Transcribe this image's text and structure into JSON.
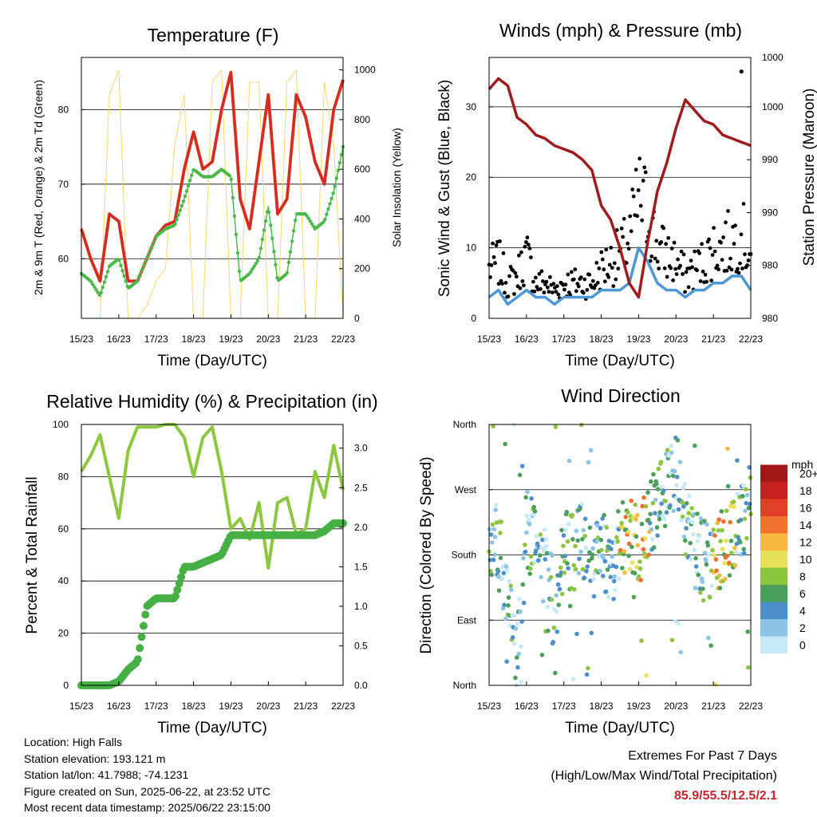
{
  "x_ticks": [
    "15/23",
    "16/23",
    "17/23",
    "18/23",
    "19/23",
    "20/23",
    "21/23",
    "22/23"
  ],
  "charts": {
    "temperature": {
      "title": "Temperature (F)",
      "xlabel": "Time (Day/UTC)",
      "ylabel": "2m & 9m T (Red, Orange) & 2m Td (Green)",
      "y2label": "Solar Insolation (Yellow)",
      "yticks": [
        "60",
        "70",
        "80"
      ],
      "y2ticks": [
        "0",
        "200",
        "400",
        "600",
        "800",
        "1000"
      ]
    },
    "wind": {
      "title": "Winds (mph) & Pressure (mb)",
      "xlabel": "Time (Day/UTC)",
      "ylabel": "Sonic Wind & Gust (Blue, Black)",
      "y2label": "Station Pressure (Maroon)",
      "yticks": [
        "0",
        "10",
        "20",
        "30"
      ],
      "y2ticks": [
        "980",
        "980",
        "990",
        "990",
        "1000",
        "1000"
      ]
    },
    "humidity": {
      "title": "Relative Humidity (%) & Precipitation (in)",
      "xlabel": "Time (Day/UTC)",
      "ylabel": "Percent & Total Rainfall",
      "yticks": [
        "0",
        "20",
        "40",
        "60",
        "80",
        "100"
      ],
      "y2ticks": [
        "0.0",
        "0.5",
        "1.0",
        "1.5",
        "2.0",
        "2.5",
        "3.0"
      ]
    },
    "direction": {
      "title": "Wind Direction",
      "xlabel": "Time (Day/UTC)",
      "ylabel": "Direction (Colored By Speed)",
      "yticks": [
        "North",
        "East",
        "South",
        "West",
        "North"
      ],
      "legend_title": "mph",
      "legend_labels": [
        "0",
        "2",
        "4",
        "6",
        "8",
        "10",
        "12",
        "14",
        "16",
        "18",
        "20+"
      ],
      "legend_colors": [
        "#c6e8f7",
        "#8cc4e8",
        "#4c8fcb",
        "#4aa05a",
        "#8cc63f",
        "#e8e05a",
        "#f7b840",
        "#f07030",
        "#e04028",
        "#c82020",
        "#a01818"
      ]
    }
  },
  "chart_data": [
    {
      "type": "line",
      "title": "Temperature (F)",
      "xlabel": "Time (Day/UTC)",
      "ylabel": "2m & 9m T (Red, Orange) & 2m Td (Green)",
      "y2label": "Solar Insolation (Yellow)",
      "ylim": [
        52,
        87
      ],
      "y2lim": [
        0,
        1050
      ],
      "x": [
        15.0,
        15.25,
        15.5,
        15.75,
        16.0,
        16.25,
        16.5,
        16.75,
        17.0,
        17.25,
        17.5,
        17.75,
        18.0,
        18.25,
        18.5,
        18.75,
        19.0,
        19.25,
        19.5,
        19.75,
        20.0,
        20.25,
        20.5,
        20.75,
        21.0,
        21.25,
        21.5,
        21.75,
        22.0
      ],
      "series": [
        {
          "values": [
            64,
            60,
            57,
            66,
            65,
            57,
            57,
            60,
            63,
            64.5,
            65,
            72,
            77,
            72,
            73,
            80,
            85,
            68,
            64,
            73,
            82,
            66,
            68,
            82,
            79,
            73,
            70,
            80,
            84
          ]
        },
        {
          "values": [
            64,
            60,
            57,
            66,
            65,
            57,
            57,
            60,
            63,
            64.5,
            65,
            72,
            77,
            72,
            73,
            80,
            85,
            68,
            64,
            73,
            82,
            66,
            68,
            82,
            79,
            73,
            70,
            80,
            84
          ]
        },
        {
          "values": [
            58,
            57,
            55,
            59,
            60,
            56,
            57,
            60,
            63,
            64,
            64.5,
            68,
            72,
            71,
            71,
            72,
            71,
            57,
            58,
            60,
            67,
            57,
            58,
            66,
            66,
            64,
            65,
            69,
            75
          ]
        },
        {
          "values": [
            0,
            0,
            0,
            900,
            1000,
            0,
            0,
            50,
            150,
            200,
            700,
            900,
            0,
            0,
            950,
            1000,
            0,
            0,
            950,
            950,
            0,
            0,
            950,
            1000,
            0,
            0,
            950,
            700,
            0
          ]
        }
      ]
    },
    {
      "type": "line",
      "title": "Winds (mph) & Pressure (mb)",
      "xlabel": "Time (Day/UTC)",
      "ylabel": "Sonic Wind & Gust (Blue, Black)",
      "y2label": "Station Pressure (Maroon)",
      "ylim": [
        0,
        37
      ],
      "x": [
        15.0,
        15.25,
        15.5,
        15.75,
        16.0,
        16.25,
        16.5,
        16.75,
        17.0,
        17.25,
        17.5,
        17.75,
        18.0,
        18.25,
        18.5,
        18.75,
        19.0,
        19.25,
        19.5,
        19.75,
        20.0,
        20.25,
        20.5,
        20.75,
        21.0,
        21.25,
        21.5,
        21.75,
        22.0
      ],
      "series": [
        {
          "values": [
            3,
            4,
            2,
            3,
            4,
            3,
            3,
            2,
            3,
            3,
            3,
            3,
            4,
            4,
            4,
            5,
            10,
            8,
            5,
            4,
            4,
            3,
            4,
            4,
            5,
            5,
            6,
            6,
            4
          ]
        },
        {
          "values": [
            7,
            8,
            5,
            6,
            9,
            5,
            5,
            4,
            5,
            5,
            5,
            5,
            7,
            8,
            9,
            11,
            17,
            15,
            10,
            9,
            8,
            6,
            7,
            8,
            10,
            10,
            11,
            12,
            9
          ]
        },
        {
          "values": [
            32.5,
            34,
            33,
            28.5,
            27.5,
            26,
            25.5,
            24.5,
            24,
            23.5,
            22.5,
            21,
            16,
            14,
            10,
            5,
            3,
            11,
            18,
            22,
            27,
            31,
            29.5,
            28,
            27.5,
            26,
            25.5,
            25,
            24.5
          ]
        }
      ]
    },
    {
      "type": "line",
      "title": "Relative Humidity (%) & Precipitation (in)",
      "xlabel": "Time (Day/UTC)",
      "ylabel": "Percent & Total Rainfall",
      "ylim": [
        0,
        100
      ],
      "y2lim": [
        0,
        3.3
      ],
      "x": [
        15.0,
        15.25,
        15.5,
        15.75,
        16.0,
        16.25,
        16.5,
        16.75,
        17.0,
        17.25,
        17.5,
        17.75,
        18.0,
        18.25,
        18.5,
        18.75,
        19.0,
        19.25,
        19.5,
        19.75,
        20.0,
        20.25,
        20.5,
        20.75,
        21.0,
        21.25,
        21.5,
        21.75,
        22.0
      ],
      "series": [
        {
          "values": [
            82,
            88,
            96,
            80,
            64,
            90,
            99,
            99,
            99,
            100,
            100,
            95,
            80,
            95,
            99,
            82,
            60,
            64,
            56,
            70,
            45,
            70,
            72,
            58,
            60,
            82,
            72,
            92,
            75
          ]
        },
        {
          "values": [
            0,
            0,
            0,
            0,
            0.05,
            0.2,
            0.3,
            1.0,
            1.1,
            1.1,
            1.1,
            1.5,
            1.5,
            1.55,
            1.6,
            1.65,
            1.9,
            1.9,
            1.9,
            1.9,
            1.9,
            1.9,
            1.9,
            1.9,
            1.9,
            1.9,
            1.95,
            2.05,
            2.05
          ]
        }
      ]
    },
    {
      "type": "scatter",
      "title": "Wind Direction",
      "xlabel": "Time (Day/UTC)",
      "ylabel": "Direction (Colored By Speed)",
      "ylim": [
        0,
        360
      ],
      "x": [
        15.0,
        15.25,
        15.5,
        15.75,
        16.0,
        16.25,
        16.5,
        16.75,
        17.0,
        17.25,
        17.5,
        17.75,
        18.0,
        18.25,
        18.5,
        18.75,
        19.0,
        19.25,
        19.5,
        19.75,
        20.0,
        20.25,
        20.5,
        20.75,
        21.0,
        21.25,
        21.5,
        21.75,
        22.0
      ],
      "series": [
        {
          "values": [
            180,
            200,
            120,
            30,
            220,
            190,
            160,
            60,
            200,
            180,
            200,
            170,
            190,
            160,
            200,
            210,
            190,
            230,
            250,
            270,
            300,
            230,
            190,
            170,
            180,
            190,
            200,
            230,
            250
          ]
        }
      ]
    }
  ],
  "info": {
    "location": "Location: High Falls",
    "elevation": "Station elevation: 193.121 m",
    "latlon": "Station lat/lon: 41.7988; -74.1231",
    "created": "Figure created on Sun, 2025-06-22, at 23:52 UTC",
    "timestamp": "Most recent data timestamp: 2025/06/22 23:15:00"
  },
  "extremes": {
    "title": "Extremes For Past 7 Days",
    "subtitle": "(High/Low/Max Wind/Total Precipitation)",
    "values": "85.9/55.5/12.5/2.1"
  }
}
